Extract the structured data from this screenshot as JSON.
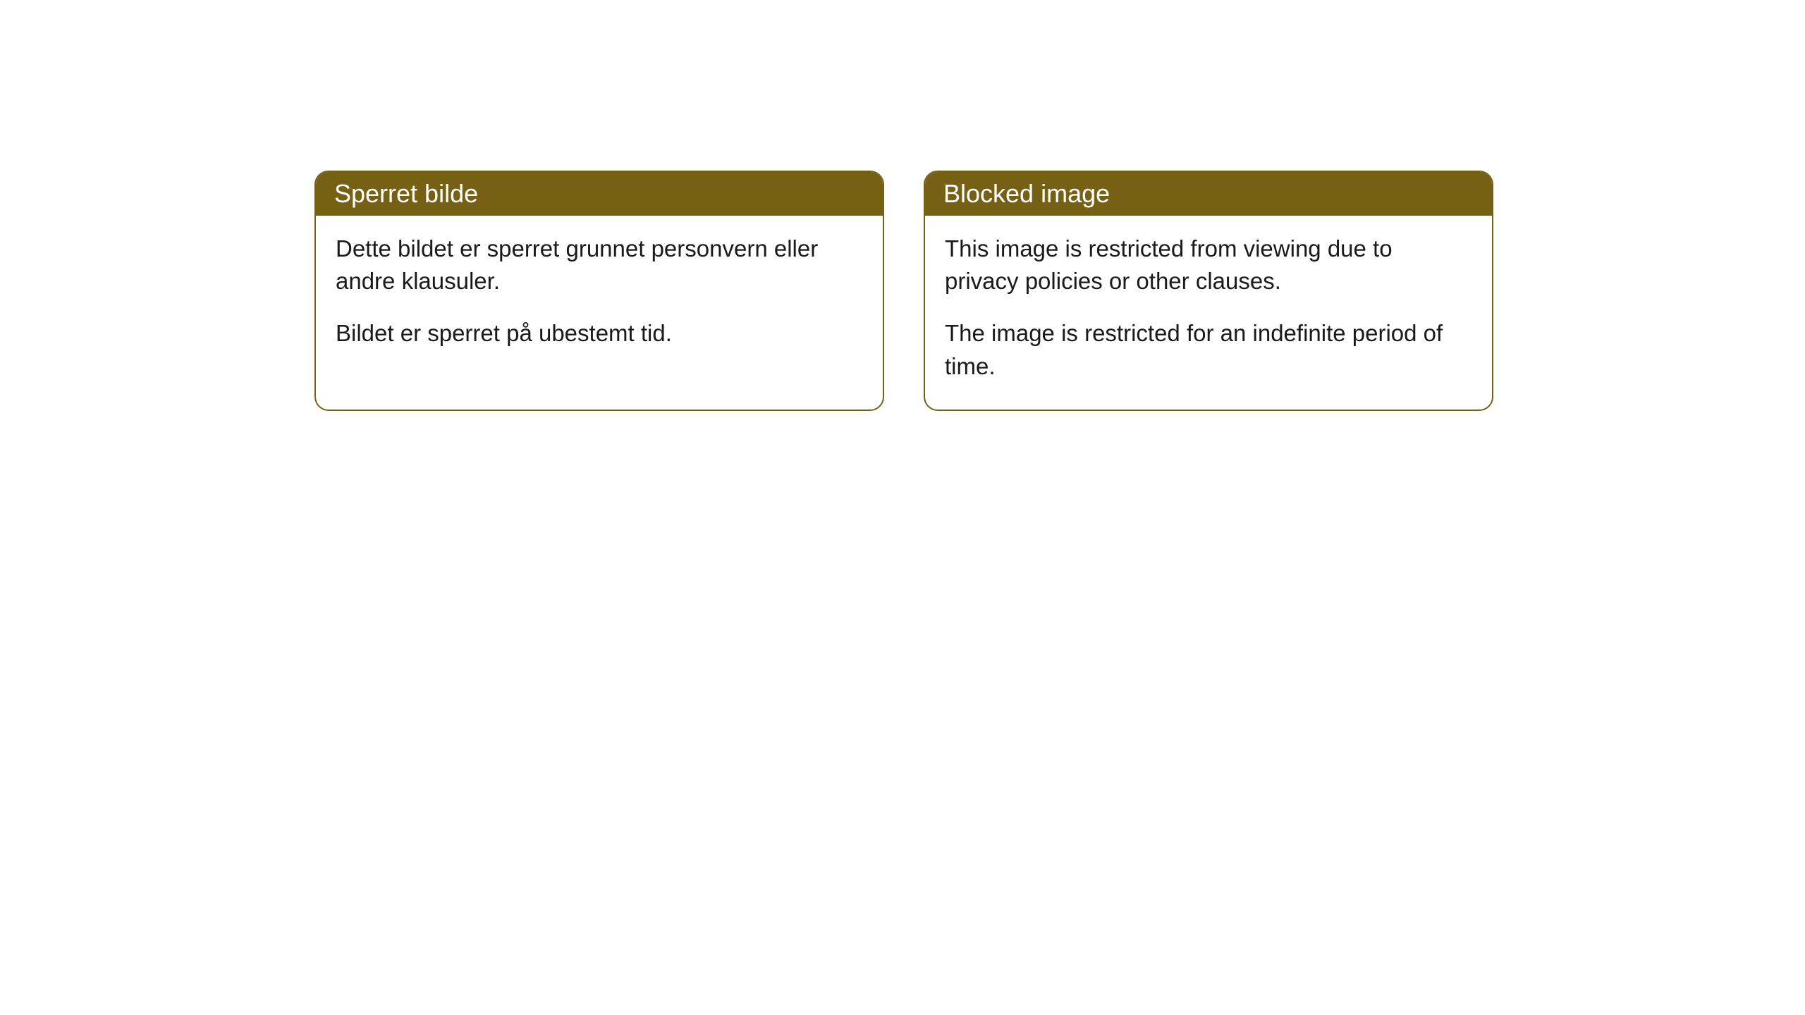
{
  "cards": [
    {
      "title": "Sperret bilde",
      "paragraph1": "Dette bildet er sperret grunnet personvern eller andre klausuler.",
      "paragraph2": "Bildet er sperret på ubestemt tid."
    },
    {
      "title": "Blocked image",
      "paragraph1": "This image is restricted from viewing due to privacy policies or other clauses.",
      "paragraph2": "The image is restricted for an indefinite period of time."
    }
  ],
  "styling": {
    "header_bg_color": "#766013",
    "header_text_color": "#ffffff",
    "border_color": "#766013",
    "body_bg_color": "#ffffff",
    "body_text_color": "#1a1a1a",
    "border_radius": 20,
    "header_fontsize": 36,
    "body_fontsize": 33
  }
}
